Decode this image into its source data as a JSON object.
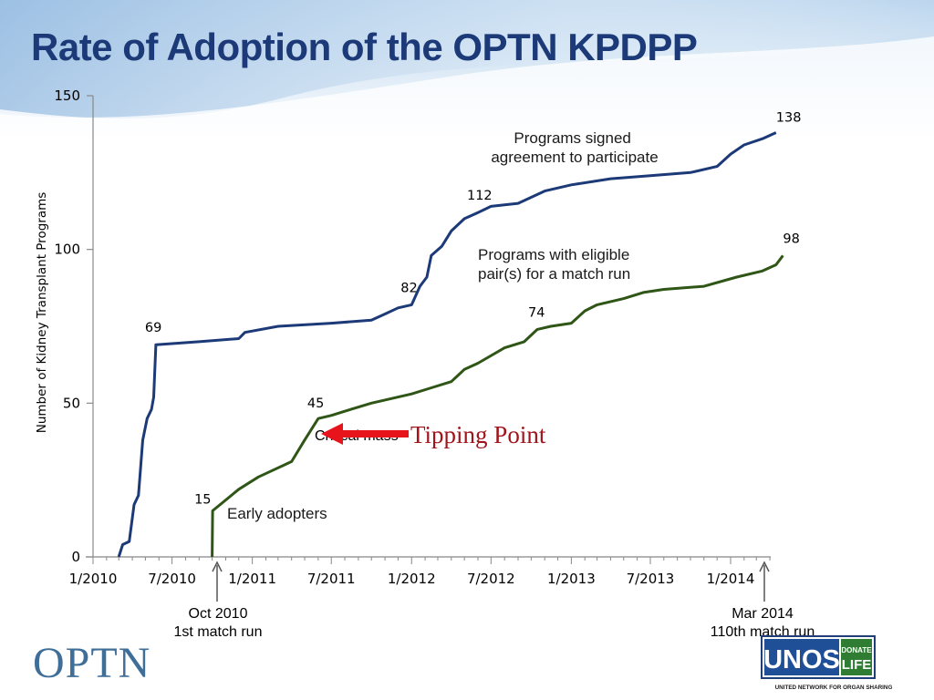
{
  "title": "Rate of Adoption of the OPTN KPDPP",
  "chart_data": {
    "type": "line",
    "ylabel": "Number of Kidney Transplant Programs",
    "ylim": [
      0,
      150
    ],
    "yticks": [
      "0",
      "50",
      "100",
      "150"
    ],
    "xticks": [
      "1/2010",
      "7/2010",
      "1/2011",
      "7/2011",
      "1/2012",
      "7/2012",
      "1/2013",
      "7/2013",
      "1/2014"
    ],
    "series": [
      {
        "name": "Programs signed agreement to participate",
        "name_lines": [
          "Programs signed",
          "agreement to participate"
        ],
        "color": "#1d3a78",
        "points": [
          [
            "2010-03-01",
            0
          ],
          [
            "2010-03-10",
            4
          ],
          [
            "2010-03-25",
            5
          ],
          [
            "2010-04-05",
            17
          ],
          [
            "2010-04-15",
            20
          ],
          [
            "2010-04-25",
            38
          ],
          [
            "2010-05-05",
            45
          ],
          [
            "2010-05-15",
            48
          ],
          [
            "2010-05-20",
            52
          ],
          [
            "2010-05-25",
            69
          ],
          [
            "2010-09-01",
            70
          ],
          [
            "2010-12-01",
            71
          ],
          [
            "2010-12-15",
            73
          ],
          [
            "2011-03-01",
            75
          ],
          [
            "2011-07-01",
            76
          ],
          [
            "2011-10-01",
            77
          ],
          [
            "2011-11-01",
            79
          ],
          [
            "2011-12-01",
            81
          ],
          [
            "2012-01-01",
            82
          ],
          [
            "2012-01-20",
            88
          ],
          [
            "2012-02-05",
            91
          ],
          [
            "2012-02-15",
            98
          ],
          [
            "2012-03-10",
            101
          ],
          [
            "2012-04-01",
            106
          ],
          [
            "2012-05-01",
            110
          ],
          [
            "2012-06-01",
            112
          ],
          [
            "2012-07-01",
            114
          ],
          [
            "2012-09-01",
            115
          ],
          [
            "2012-11-01",
            119
          ],
          [
            "2013-01-01",
            121
          ],
          [
            "2013-04-01",
            123
          ],
          [
            "2013-07-01",
            124
          ],
          [
            "2013-10-01",
            125
          ],
          [
            "2013-12-01",
            127
          ],
          [
            "2014-01-01",
            131
          ],
          [
            "2014-02-01",
            134
          ],
          [
            "2014-03-15",
            136
          ],
          [
            "2014-04-15",
            138
          ]
        ],
        "labels": [
          {
            "date": "2010-05-25",
            "value": 69,
            "text": "69"
          },
          {
            "date": "2012-01-01",
            "value": 82,
            "text": "82"
          },
          {
            "date": "2012-06-01",
            "value": 112,
            "text": "112"
          },
          {
            "date": "2014-04-15",
            "value": 138,
            "text": "138"
          }
        ]
      },
      {
        "name": "Programs with eligible pair(s) for a match run",
        "name_lines": [
          "Programs with eligible",
          "pair(s) for a match run"
        ],
        "color": "#2f5617",
        "points": [
          [
            "2010-10-01",
            0
          ],
          [
            "2010-10-02",
            15
          ],
          [
            "2010-12-01",
            22
          ],
          [
            "2011-01-15",
            26
          ],
          [
            "2011-04-01",
            31
          ],
          [
            "2011-05-01",
            38
          ],
          [
            "2011-06-01",
            45
          ],
          [
            "2011-07-01",
            46
          ],
          [
            "2011-08-15",
            48
          ],
          [
            "2011-10-01",
            50
          ],
          [
            "2012-01-01",
            53
          ],
          [
            "2012-02-15",
            55
          ],
          [
            "2012-04-01",
            57
          ],
          [
            "2012-05-01",
            61
          ],
          [
            "2012-06-01",
            63
          ],
          [
            "2012-08-01",
            68
          ],
          [
            "2012-09-15",
            70
          ],
          [
            "2012-10-15",
            74
          ],
          [
            "2012-11-15",
            75
          ],
          [
            "2013-01-01",
            76
          ],
          [
            "2013-02-01",
            80
          ],
          [
            "2013-03-01",
            82
          ],
          [
            "2013-05-01",
            84
          ],
          [
            "2013-06-15",
            86
          ],
          [
            "2013-08-01",
            87
          ],
          [
            "2013-11-01",
            88
          ],
          [
            "2014-01-15",
            91
          ],
          [
            "2014-03-15",
            93
          ],
          [
            "2014-04-15",
            95
          ],
          [
            "2014-05-01",
            98
          ]
        ],
        "labels": [
          {
            "date": "2010-10-02",
            "value": 15,
            "text": "15"
          },
          {
            "date": "2011-06-01",
            "value": 45,
            "text": "45"
          },
          {
            "date": "2012-10-15",
            "value": 74,
            "text": "74"
          },
          {
            "date": "2014-05-01",
            "value": 98,
            "text": "98"
          }
        ]
      }
    ],
    "annotations": {
      "early_adopters": "Early adopters",
      "critical_mass": "Critical mass",
      "tipping_point": "Tipping Point",
      "oct2010_date": "Oct 2010",
      "oct2010_desc": "1st match run",
      "mar2014_date": "Mar 2014",
      "mar2014_desc": "110th match run"
    }
  },
  "logos": {
    "optn": "OPTN",
    "unos_main": "UNOS",
    "unos_donate": "DONATE",
    "unos_life": "LIFE",
    "unos_tagline": "UNITED NETWORK FOR ORGAN SHARING"
  }
}
